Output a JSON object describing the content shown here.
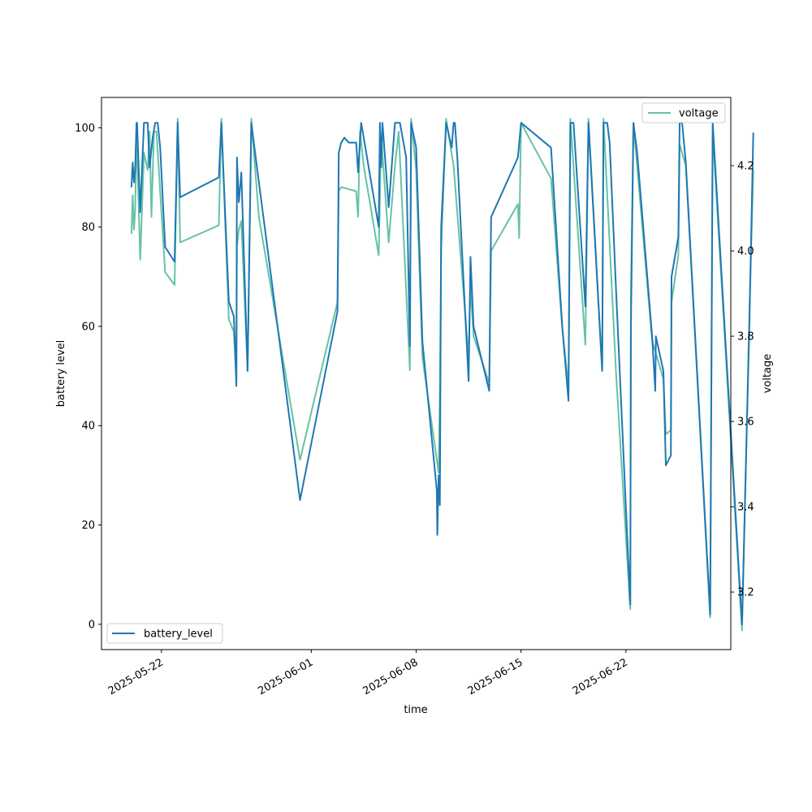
{
  "chart_data": {
    "type": "line",
    "xlabel": "time",
    "ylabel_left": "battery level",
    "ylabel_right": "voltage",
    "x_tick_labels": [
      "2025-05-22",
      "2025-06-01",
      "2025-06-08",
      "2025-06-15",
      "2025-06-22"
    ],
    "y_left_ticks": [
      0,
      20,
      40,
      60,
      80,
      100
    ],
    "y_right_ticks": [
      3.2,
      3.4,
      3.6,
      3.8,
      4.0,
      4.2
    ],
    "xlim": [
      "2025-05-18",
      "2025-06-29"
    ],
    "ylim_left": [
      -5.1,
      106.1
    ],
    "ylim_right": [
      3.065,
      4.36
    ],
    "grid": false,
    "series": [
      {
        "name": "battery_level",
        "axis": "left",
        "color": "#1f77b4",
        "legend_position": "lower-left",
        "points": [
          [
            "2025-05-20 00:00",
            88
          ],
          [
            "2025-05-20 02:00",
            93
          ],
          [
            "2025-05-20 04:00",
            89
          ],
          [
            "2025-05-20 06:00",
            92
          ],
          [
            "2025-05-20 08:00",
            101
          ],
          [
            "2025-05-20 09:00",
            101
          ],
          [
            "2025-05-20 14:00",
            83
          ],
          [
            "2025-05-20 20:00",
            101
          ],
          [
            "2025-05-21 02:00",
            101
          ],
          [
            "2025-05-21 05:00",
            92
          ],
          [
            "2025-05-21 10:00",
            98
          ],
          [
            "2025-05-21 14:00",
            101
          ],
          [
            "2025-05-21 18:00",
            101
          ],
          [
            "2025-05-21 22:00",
            96
          ],
          [
            "2025-05-22 06:00",
            76
          ],
          [
            "2025-05-22 21:00",
            73
          ],
          [
            "2025-05-23 02:00",
            101
          ],
          [
            "2025-05-23 06:00",
            86
          ],
          [
            "2025-05-25 20:00",
            90
          ],
          [
            "2025-05-26 00:00",
            101
          ],
          [
            "2025-05-26 12:00",
            65
          ],
          [
            "2025-05-26 20:00",
            62
          ],
          [
            "2025-05-27 00:00",
            48
          ],
          [
            "2025-05-27 01:00",
            94
          ],
          [
            "2025-05-27 04:00",
            85
          ],
          [
            "2025-05-27 08:00",
            91
          ],
          [
            "2025-05-27 18:00",
            51
          ],
          [
            "2025-05-28 00:00",
            101
          ],
          [
            "2025-05-28 08:00",
            93
          ],
          [
            "2025-05-31 06:00",
            25
          ],
          [
            "2025-06-02 18:00",
            63
          ],
          [
            "2025-06-02 20:00",
            95
          ],
          [
            "2025-06-03 00:00",
            97
          ],
          [
            "2025-06-03 05:00",
            98
          ],
          [
            "2025-06-03 12:00",
            97
          ],
          [
            "2025-06-04 00:00",
            97
          ],
          [
            "2025-06-04 03:00",
            91
          ],
          [
            "2025-06-04 06:00",
            97
          ],
          [
            "2025-06-04 08:00",
            101
          ],
          [
            "2025-06-05 12:00",
            80
          ],
          [
            "2025-06-05 14:00",
            101
          ],
          [
            "2025-06-05 16:00",
            92
          ],
          [
            "2025-06-05 18:00",
            101
          ],
          [
            "2025-06-06 04:00",
            84
          ],
          [
            "2025-06-06 14:00",
            101
          ],
          [
            "2025-06-06 22:00",
            101
          ],
          [
            "2025-06-07 08:00",
            94
          ],
          [
            "2025-06-07 14:00",
            56
          ],
          [
            "2025-06-07 16:00",
            101
          ],
          [
            "2025-06-08 00:00",
            96
          ],
          [
            "2025-06-08 10:00",
            57
          ],
          [
            "2025-06-09 09:00",
            27
          ],
          [
            "2025-06-09 10:00",
            18
          ],
          [
            "2025-06-09 12:00",
            30
          ],
          [
            "2025-06-09 14:00",
            24
          ],
          [
            "2025-06-09 16:00",
            80
          ],
          [
            "2025-06-10 00:00",
            101
          ],
          [
            "2025-06-10 09:00",
            96
          ],
          [
            "2025-06-10 12:00",
            101
          ],
          [
            "2025-06-10 14:00",
            101
          ],
          [
            "2025-06-10 18:00",
            94
          ],
          [
            "2025-06-11 12:00",
            49
          ],
          [
            "2025-06-11 15:00",
            74
          ],
          [
            "2025-06-11 20:00",
            60
          ],
          [
            "2025-06-12 21:00",
            47
          ],
          [
            "2025-06-13 00:00",
            82
          ],
          [
            "2025-06-14 19:00",
            94
          ],
          [
            "2025-06-15 00:00",
            101
          ],
          [
            "2025-06-17 00:00",
            96
          ],
          [
            "2025-06-17 18:00",
            60
          ],
          [
            "2025-06-18 04:00",
            45
          ],
          [
            "2025-06-18 07:00",
            101
          ],
          [
            "2025-06-18 12:00",
            101
          ],
          [
            "2025-06-19 07:00",
            64
          ],
          [
            "2025-06-19 12:00",
            101
          ],
          [
            "2025-06-20 10:00",
            51
          ],
          [
            "2025-06-20 12:00",
            101
          ],
          [
            "2025-06-20 18:00",
            101
          ],
          [
            "2025-06-20 22:00",
            97
          ],
          [
            "2025-06-21 08:00",
            68
          ],
          [
            "2025-06-22 07:00",
            4
          ],
          [
            "2025-06-22 08:00",
            60
          ],
          [
            "2025-06-22 12:00",
            101
          ],
          [
            "2025-06-22 18:00",
            95
          ],
          [
            "2025-06-23 18:00",
            58
          ],
          [
            "2025-06-23 23:00",
            47
          ],
          [
            "2025-06-24 00:00",
            58
          ],
          [
            "2025-06-24 12:00",
            51
          ],
          [
            "2025-06-24 16:00",
            32
          ],
          [
            "2025-06-25 00:00",
            34
          ],
          [
            "2025-06-25 01:00",
            70
          ],
          [
            "2025-06-25 12:00",
            78
          ],
          [
            "2025-06-25 14:00",
            101
          ],
          [
            "2025-06-25 18:00",
            101
          ],
          [
            "2025-06-26 00:00",
            93
          ],
          [
            "2025-06-27 15:00",
            2
          ],
          [
            "2025-06-27 19:00",
            101
          ],
          [
            "2025-06-29 18:00",
            0
          ],
          [
            "2025-06-30 06:00",
            62
          ],
          [
            "2025-06-30 12:00",
            99
          ]
        ]
      },
      {
        "name": "voltage",
        "axis": "right",
        "color": "#66c2a5",
        "legend_position": "upper-right",
        "points": [
          [
            "2025-05-20 00:00",
            4.04
          ],
          [
            "2025-05-20 02:00",
            4.13
          ],
          [
            "2025-05-20 04:00",
            4.05
          ],
          [
            "2025-05-20 06:00",
            4.1
          ],
          [
            "2025-05-20 08:00",
            4.28
          ],
          [
            "2025-05-20 14:00",
            3.98
          ],
          [
            "2025-05-20 20:00",
            4.23
          ],
          [
            "2025-05-21 02:00",
            4.19
          ],
          [
            "2025-05-21 05:00",
            4.28
          ],
          [
            "2025-05-21 08:00",
            4.08
          ],
          [
            "2025-05-21 12:00",
            4.28
          ],
          [
            "2025-05-21 16:00",
            4.28
          ],
          [
            "2025-05-22 06:00",
            3.95
          ],
          [
            "2025-05-22 21:00",
            3.92
          ],
          [
            "2025-05-23 02:00",
            4.31
          ],
          [
            "2025-05-23 06:00",
            4.02
          ],
          [
            "2025-05-25 20:00",
            4.06
          ],
          [
            "2025-05-26 00:00",
            4.31
          ],
          [
            "2025-05-26 12:00",
            3.84
          ],
          [
            "2025-05-26 20:00",
            3.81
          ],
          [
            "2025-05-27 00:00",
            3.7
          ],
          [
            "2025-05-27 01:00",
            4.01
          ],
          [
            "2025-05-27 04:00",
            4.05
          ],
          [
            "2025-05-27 08:00",
            4.07
          ],
          [
            "2025-05-27 18:00",
            3.72
          ],
          [
            "2025-05-28 00:00",
            4.31
          ],
          [
            "2025-05-28 12:00",
            4.08
          ],
          [
            "2025-05-31 06:00",
            3.51
          ],
          [
            "2025-06-02 18:00",
            3.88
          ],
          [
            "2025-06-02 20:00",
            4.14
          ],
          [
            "2025-06-03 00:00",
            4.15
          ],
          [
            "2025-06-04 00:00",
            4.14
          ],
          [
            "2025-06-04 03:00",
            4.08
          ],
          [
            "2025-06-04 06:00",
            4.28
          ],
          [
            "2025-06-04 12:00",
            4.2
          ],
          [
            "2025-06-05 12:00",
            3.99
          ],
          [
            "2025-06-05 16:00",
            4.27
          ],
          [
            "2025-06-06 04:00",
            4.02
          ],
          [
            "2025-06-06 14:00",
            4.2
          ],
          [
            "2025-06-06 20:00",
            4.28
          ],
          [
            "2025-06-07 14:00",
            3.72
          ],
          [
            "2025-06-07 16:00",
            4.31
          ],
          [
            "2025-06-08 00:00",
            4.19
          ],
          [
            "2025-06-08 10:00",
            3.75
          ],
          [
            "2025-06-09 12:00",
            3.48
          ],
          [
            "2025-06-09 14:00",
            3.68
          ],
          [
            "2025-06-09 16:00",
            4.0
          ],
          [
            "2025-06-10 00:00",
            4.31
          ],
          [
            "2025-06-10 12:00",
            4.2
          ],
          [
            "2025-06-11 12:00",
            3.75
          ],
          [
            "2025-06-11 15:00",
            3.92
          ],
          [
            "2025-06-11 20:00",
            3.8
          ],
          [
            "2025-06-12 21:00",
            3.69
          ],
          [
            "2025-06-13 00:00",
            4.0
          ],
          [
            "2025-06-14 19:00",
            4.11
          ],
          [
            "2025-06-14 21:00",
            4.03
          ],
          [
            "2025-06-15 00:00",
            4.3
          ],
          [
            "2025-06-17 00:00",
            4.17
          ],
          [
            "2025-06-17 18:00",
            3.82
          ],
          [
            "2025-06-18 04:00",
            3.68
          ],
          [
            "2025-06-18 07:00",
            4.31
          ],
          [
            "2025-06-19 07:00",
            3.78
          ],
          [
            "2025-06-19 12:00",
            4.31
          ],
          [
            "2025-06-20 10:00",
            3.72
          ],
          [
            "2025-06-20 12:00",
            4.31
          ],
          [
            "2025-06-21 08:00",
            3.72
          ],
          [
            "2025-06-22 07:00",
            3.16
          ],
          [
            "2025-06-22 08:00",
            3.9
          ],
          [
            "2025-06-22 12:00",
            4.3
          ],
          [
            "2025-06-23 18:00",
            3.79
          ],
          [
            "2025-06-24 12:00",
            3.7
          ],
          [
            "2025-06-24 16:00",
            3.57
          ],
          [
            "2025-06-25 00:00",
            3.58
          ],
          [
            "2025-06-25 01:00",
            3.88
          ],
          [
            "2025-06-25 12:00",
            3.99
          ],
          [
            "2025-06-25 14:00",
            4.25
          ],
          [
            "2025-06-26 00:00",
            4.2
          ],
          [
            "2025-06-27 15:00",
            3.14
          ],
          [
            "2025-06-27 19:00",
            4.28
          ],
          [
            "2025-06-29 18:00",
            3.11
          ],
          [
            "2025-06-30 06:00",
            3.87
          ],
          [
            "2025-06-30 12:00",
            4.19
          ]
        ]
      }
    ]
  }
}
